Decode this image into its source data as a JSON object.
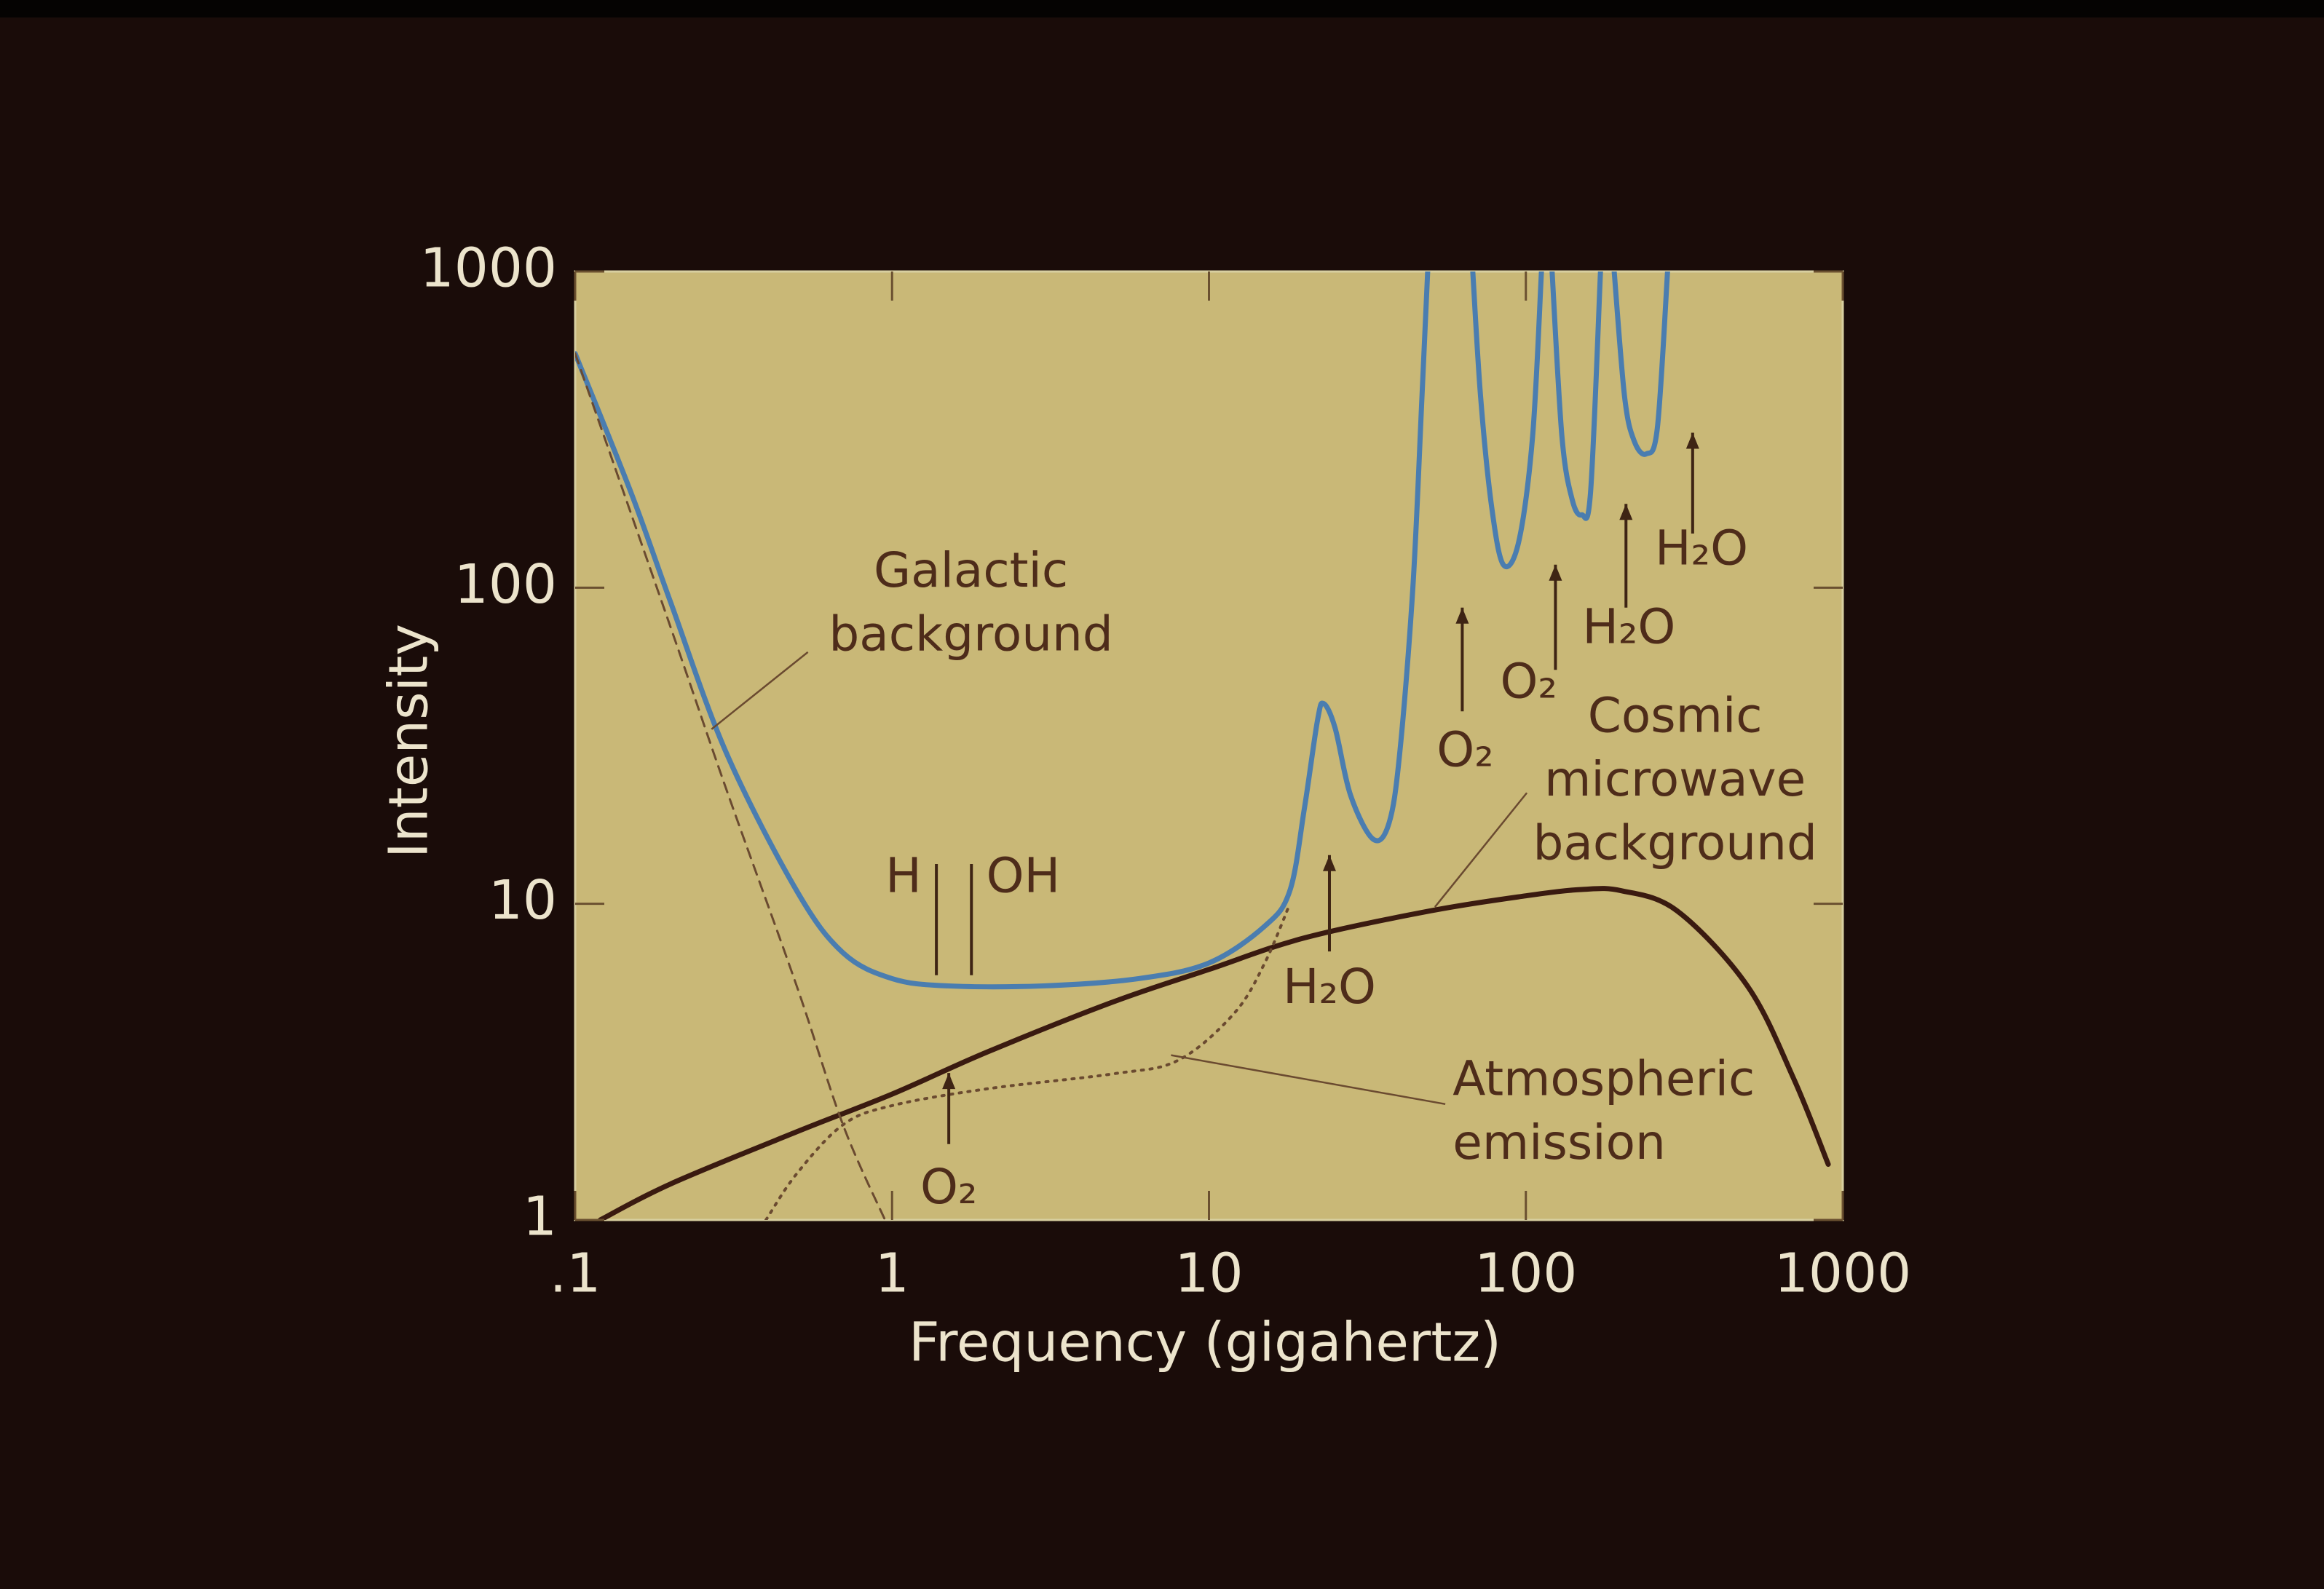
{
  "chart_data": {
    "type": "line",
    "x_label": "Frequency (gigahertz)",
    "y_label": "Intensity",
    "x_scale": "log",
    "y_scale": "log",
    "xlim": [
      0.1,
      1000
    ],
    "ylim": [
      1,
      1000
    ],
    "xticks": [
      {
        "value": 0.1,
        "label": ".1"
      },
      1,
      10,
      100,
      1000
    ],
    "yticks": [
      1,
      10,
      100,
      1000
    ],
    "series": [
      {
        "color": "#4a7db0",
        "style": "solid",
        "x": [
          0.1,
          0.15,
          0.2,
          0.3,
          0.5,
          0.7,
          1,
          1.5,
          3,
          6,
          10,
          15,
          18,
          20,
          22,
          23,
          25,
          28,
          33,
          37,
          40,
          44,
          47,
          49,
          null,
          68,
          72,
          78,
          85,
          95,
          105,
          112,
          null,
          121,
          130,
          140,
          150,
          160,
          172,
          null,
          190,
          205,
          220,
          240,
          260,
          280
        ],
        "values": [
          550,
          200,
          90,
          30,
          11,
          7,
          5.8,
          5.5,
          5.5,
          5.8,
          6.5,
          8.5,
          11,
          20,
          38,
          43,
          36,
          22,
          16,
          18,
          30,
          100,
          400,
          1000,
          null,
          1000,
          400,
          180,
          118,
          140,
          300,
          1000,
          null,
          1000,
          300,
          190,
          170,
          200,
          1000,
          null,
          1000,
          400,
          290,
          265,
          320,
          1000
        ]
      },
      {
        "color": "#3a1a10",
        "style": "solid",
        "x": [
          0.12,
          0.2,
          0.5,
          1,
          2,
          5,
          10,
          20,
          50,
          100,
          150,
          200,
          300,
          500,
          700,
          900
        ],
        "values": [
          1.0,
          1.3,
          1.9,
          2.5,
          3.4,
          4.9,
          6.2,
          7.8,
          9.5,
          10.6,
          11.1,
          11.0,
          9.5,
          5.5,
          2.8,
          1.5
        ]
      },
      {
        "color": "#6a4a30",
        "style": "dashed",
        "x": [
          0.1,
          0.2,
          0.3,
          0.5,
          0.7,
          0.95
        ],
        "values": [
          550,
          75,
          23,
          5.5,
          2,
          1
        ]
      },
      {
        "color": "#6a4a30",
        "style": "dotted",
        "x": [
          0.4,
          0.5,
          0.7,
          1,
          2,
          5,
          8,
          12,
          15,
          18
        ],
        "values": [
          1.0,
          1.4,
          2.0,
          2.3,
          2.6,
          2.9,
          3.2,
          4.5,
          6.5,
          10
        ]
      }
    ],
    "annotations": [
      {
        "text": [
          "Galactic",
          "background"
        ]
      },
      {
        "text": [
          "Cosmic",
          "microwave",
          "background"
        ]
      },
      {
        "text": [
          "Atmospheric",
          "emission"
        ]
      }
    ],
    "markers": [
      {
        "label": "H",
        "x": 1.38
      },
      {
        "label": "OH",
        "x": 1.78
      },
      {
        "label": "O₂",
        "x": 1.51
      },
      {
        "label": "H₂O",
        "x": 24
      },
      {
        "label": "O₂",
        "x": 63
      },
      {
        "label": "O₂",
        "x": 124
      },
      {
        "label": "H₂O",
        "x": 207
      },
      {
        "label": "H₂O",
        "x": 336
      }
    ]
  }
}
